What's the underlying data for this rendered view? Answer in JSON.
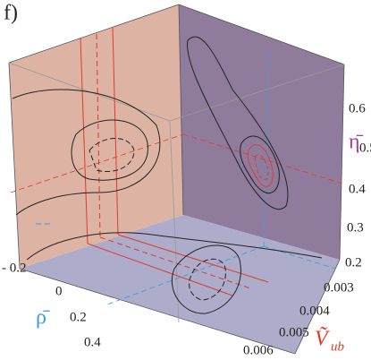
{
  "panel_label": "f)",
  "axes": {
    "eta": {
      "label": "η̄",
      "ticks": [
        "0.6",
        "0.5",
        "0.4",
        "0.3",
        "0.2"
      ]
    },
    "rho": {
      "label": "ρ̄",
      "ticks": [
        "- 0.2",
        "0",
        "0.2",
        "0.4"
      ]
    },
    "vub": {
      "label": "Ṽ",
      "subscript": "ub",
      "ticks": [
        "0.003",
        "0.004",
        "0.005",
        "0.006"
      ]
    }
  }
}
